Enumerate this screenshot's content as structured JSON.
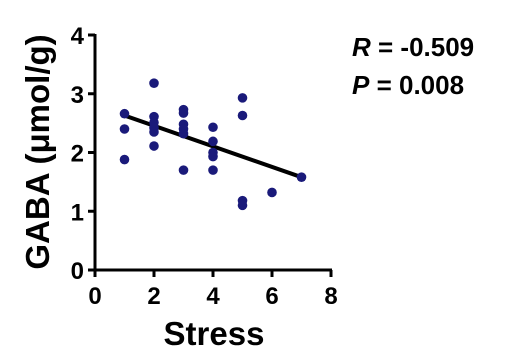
{
  "chart_data": {
    "type": "scatter",
    "xlabel": "Stress",
    "ylabel": "GABA (μmol/g)",
    "xlim": [
      0,
      8
    ],
    "ylim": [
      0,
      4
    ],
    "x_ticks": [
      "0",
      "2",
      "4",
      "6",
      "8"
    ],
    "y_ticks": [
      "0",
      "1",
      "2",
      "3",
      "4"
    ],
    "grid": false,
    "colors": {
      "points": "#1a1a7a",
      "fit_line": "#000000",
      "axes": "#000000"
    },
    "points": [
      {
        "x": 1,
        "y": 2.66
      },
      {
        "x": 1,
        "y": 2.4
      },
      {
        "x": 1,
        "y": 1.88
      },
      {
        "x": 2,
        "y": 3.18
      },
      {
        "x": 2,
        "y": 2.61
      },
      {
        "x": 2,
        "y": 2.51
      },
      {
        "x": 2,
        "y": 2.42
      },
      {
        "x": 2,
        "y": 2.35
      },
      {
        "x": 2,
        "y": 2.11
      },
      {
        "x": 3,
        "y": 2.73
      },
      {
        "x": 3,
        "y": 2.67
      },
      {
        "x": 3,
        "y": 2.48
      },
      {
        "x": 3,
        "y": 2.4
      },
      {
        "x": 3,
        "y": 2.32
      },
      {
        "x": 3,
        "y": 1.7
      },
      {
        "x": 4,
        "y": 2.43
      },
      {
        "x": 4,
        "y": 2.19
      },
      {
        "x": 4,
        "y": 2.0
      },
      {
        "x": 4,
        "y": 1.93
      },
      {
        "x": 4,
        "y": 1.7
      },
      {
        "x": 5,
        "y": 2.93
      },
      {
        "x": 5,
        "y": 2.63
      },
      {
        "x": 5,
        "y": 1.18
      },
      {
        "x": 5,
        "y": 1.1
      },
      {
        "x": 6,
        "y": 1.32
      },
      {
        "x": 7,
        "y": 1.58
      }
    ],
    "fit_line": {
      "x": [
        1,
        7
      ],
      "y": [
        2.63,
        1.58
      ]
    },
    "annotations": {
      "r_label": "R",
      "r_value": "= -0.509",
      "p_label": "P",
      "p_value": "= 0.008"
    }
  }
}
